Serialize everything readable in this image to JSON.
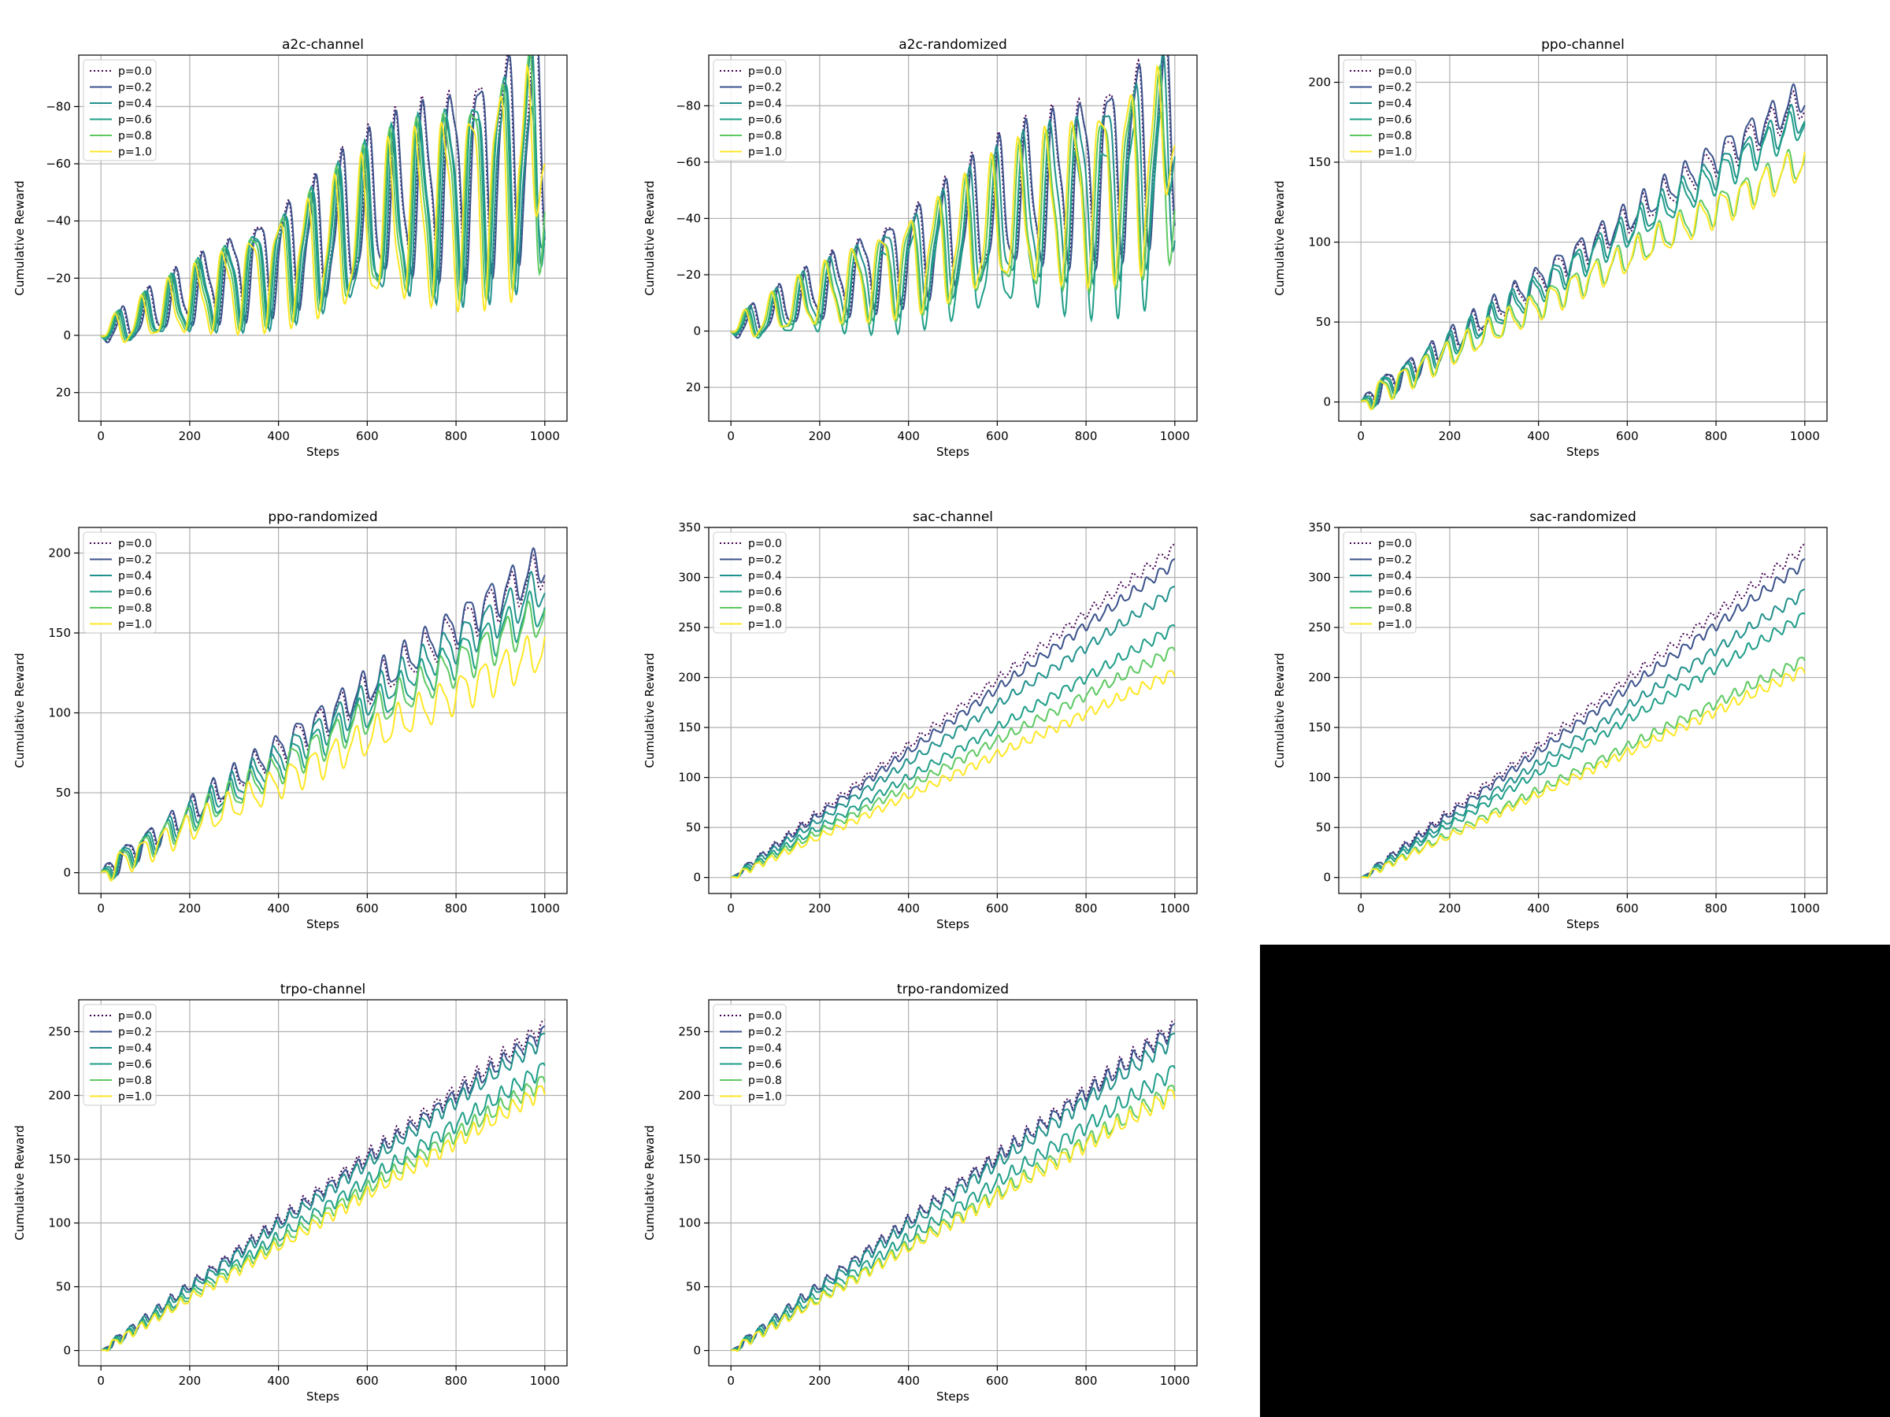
{
  "figure": {
    "xlabel": "Steps",
    "ylabel": "Cumulative Reward",
    "legend_placement": "upper-left",
    "grid": true,
    "series_colors": [
      "#440154",
      "#3b528b",
      "#21918c",
      "#1f9e89",
      "#5ec962",
      "#fde725"
    ],
    "series_dash": [
      "dotted",
      "solid",
      "solid",
      "solid",
      "solid",
      "solid"
    ]
  },
  "chart_data": [
    {
      "type": "line",
      "title": "a2c-channel",
      "xlabel": "Steps",
      "ylabel": "Cumulative Reward",
      "xlim": [
        -50,
        1050
      ],
      "ylim": [
        30,
        -98
      ],
      "y_inverted": true,
      "xticks": [
        0,
        200,
        400,
        600,
        800,
        1000
      ],
      "yticks": [
        20,
        0,
        -20,
        -40,
        -60,
        -80
      ],
      "ytick_labels": [
        "20",
        "0",
        "−20",
        "−40",
        "−60",
        "−80"
      ],
      "legend": "upper-left",
      "grid": true,
      "oscillation": {
        "period": 62,
        "amp_start": 4,
        "amp_end": 38
      },
      "series": [
        {
          "name": "p=0.0",
          "trend_end": -72,
          "phase": 0.2
        },
        {
          "name": "p=0.2",
          "trend_end": -70,
          "phase": 0.0
        },
        {
          "name": "p=0.4",
          "trend_end": -60,
          "phase": 0.7,
          "end": -32
        },
        {
          "name": "p=0.6",
          "trend_end": -64,
          "phase": 1.1
        },
        {
          "name": "p=0.8",
          "trend_end": -62,
          "phase": 1.5
        },
        {
          "name": "p=1.0",
          "trend_end": -58,
          "phase": 1.9,
          "end": -60
        }
      ]
    },
    {
      "type": "line",
      "title": "a2c-randomized",
      "xlabel": "Steps",
      "ylabel": "Cumulative Reward",
      "xlim": [
        -50,
        1050
      ],
      "ylim": [
        32,
        -98
      ],
      "y_inverted": true,
      "xticks": [
        0,
        200,
        400,
        600,
        800,
        1000
      ],
      "yticks": [
        20,
        0,
        -20,
        -40,
        -60,
        -80
      ],
      "ytick_labels": [
        "20",
        "0",
        "−20",
        "−40",
        "−60",
        "−80"
      ],
      "legend": "upper-left",
      "grid": true,
      "oscillation": {
        "period": 62,
        "amp_start": 4,
        "amp_end": 34
      },
      "series": [
        {
          "name": "p=0.0",
          "trend_end": -72,
          "phase": 0.2
        },
        {
          "name": "p=0.2",
          "trend_end": -70,
          "phase": 0.0
        },
        {
          "name": "p=0.4",
          "trend_end": -64,
          "phase": 0.7
        },
        {
          "name": "p=0.6",
          "trend_end": -48,
          "phase": 1.1,
          "end": -62
        },
        {
          "name": "p=0.8",
          "trend_end": -60,
          "phase": 1.5
        },
        {
          "name": "p=1.0",
          "trend_end": -62,
          "phase": 1.9,
          "end": -66
        }
      ]
    },
    {
      "type": "line",
      "title": "ppo-channel",
      "xlabel": "Steps",
      "ylabel": "Cumulative Reward",
      "xlim": [
        -50,
        1050
      ],
      "ylim": [
        -12,
        217
      ],
      "xticks": [
        0,
        200,
        400,
        600,
        800,
        1000
      ],
      "yticks": [
        0,
        50,
        100,
        150,
        200
      ],
      "ytick_labels": [
        "0",
        "50",
        "100",
        "150",
        "200"
      ],
      "legend": "upper-left",
      "grid": true,
      "oscillation": {
        "period": 48,
        "amp_start": 7,
        "amp_end": 10
      },
      "series": [
        {
          "name": "p=0.0",
          "trend_end": 188,
          "phase": 0.2
        },
        {
          "name": "p=0.2",
          "trend_end": 192,
          "phase": 0.0
        },
        {
          "name": "p=0.4",
          "trend_end": 180,
          "phase": 0.7
        },
        {
          "name": "p=0.6",
          "trend_end": 176,
          "phase": 1.1
        },
        {
          "name": "p=0.8",
          "trend_end": 152,
          "phase": 1.5
        },
        {
          "name": "p=1.0",
          "trend_end": 150,
          "phase": 1.9
        }
      ]
    },
    {
      "type": "line",
      "title": "ppo-randomized",
      "xlabel": "Steps",
      "ylabel": "Cumulative Reward",
      "xlim": [
        -50,
        1050
      ],
      "ylim": [
        -13,
        216
      ],
      "xticks": [
        0,
        200,
        400,
        600,
        800,
        1000
      ],
      "yticks": [
        0,
        50,
        100,
        150,
        200
      ],
      "ytick_labels": [
        "0",
        "50",
        "100",
        "150",
        "200"
      ],
      "legend": "upper-left",
      "grid": true,
      "oscillation": {
        "period": 48,
        "amp_start": 7,
        "amp_end": 12
      },
      "series": [
        {
          "name": "p=0.0",
          "trend_end": 190,
          "phase": 0.2
        },
        {
          "name": "p=0.2",
          "trend_end": 194,
          "phase": 0.0
        },
        {
          "name": "p=0.4",
          "trend_end": 180,
          "phase": 0.7
        },
        {
          "name": "p=0.6",
          "trend_end": 168,
          "phase": 1.1
        },
        {
          "name": "p=0.8",
          "trend_end": 162,
          "phase": 1.5
        },
        {
          "name": "p=1.0",
          "trend_end": 140,
          "phase": 1.9
        }
      ]
    },
    {
      "type": "line",
      "title": "sac-channel",
      "xlabel": "Steps",
      "ylabel": "Cumulative Reward",
      "xlim": [
        -50,
        1050
      ],
      "ylim": [
        -16,
        350
      ],
      "xticks": [
        0,
        200,
        400,
        600,
        800,
        1000
      ],
      "yticks": [
        0,
        50,
        100,
        150,
        200,
        250,
        300,
        350
      ],
      "ytick_labels": [
        "0",
        "50",
        "100",
        "150",
        "200",
        "250",
        "300",
        "350"
      ],
      "legend": "upper-left",
      "grid": true,
      "oscillation": {
        "period": 30,
        "amp_start": 3,
        "amp_end": 5
      },
      "series": [
        {
          "name": "p=0.0",
          "trend_end": 330,
          "phase": 0.2
        },
        {
          "name": "p=0.2",
          "trend_end": 315,
          "phase": 0.0
        },
        {
          "name": "p=0.4",
          "trend_end": 288,
          "phase": 0.7
        },
        {
          "name": "p=0.6",
          "trend_end": 250,
          "phase": 1.1
        },
        {
          "name": "p=0.8",
          "trend_end": 228,
          "phase": 1.5
        },
        {
          "name": "p=1.0",
          "trend_end": 205,
          "phase": 1.9
        }
      ]
    },
    {
      "type": "line",
      "title": "sac-randomized",
      "xlabel": "Steps",
      "ylabel": "Cumulative Reward",
      "xlim": [
        -50,
        1050
      ],
      "ylim": [
        -16,
        350
      ],
      "xticks": [
        0,
        200,
        400,
        600,
        800,
        1000
      ],
      "yticks": [
        0,
        50,
        100,
        150,
        200,
        250,
        300,
        350
      ],
      "ytick_labels": [
        "0",
        "50",
        "100",
        "150",
        "200",
        "250",
        "300",
        "350"
      ],
      "legend": "upper-left",
      "grid": true,
      "oscillation": {
        "period": 30,
        "amp_start": 3,
        "amp_end": 5
      },
      "series": [
        {
          "name": "p=0.0",
          "trend_end": 330,
          "phase": 0.2
        },
        {
          "name": "p=0.2",
          "trend_end": 315,
          "phase": 0.0
        },
        {
          "name": "p=0.4",
          "trend_end": 285,
          "phase": 0.7
        },
        {
          "name": "p=0.6",
          "trend_end": 262,
          "phase": 1.1
        },
        {
          "name": "p=0.8",
          "trend_end": 218,
          "phase": 1.5
        },
        {
          "name": "p=1.0",
          "trend_end": 208,
          "phase": 1.9
        }
      ]
    },
    {
      "type": "line",
      "title": "trpo-channel",
      "xlabel": "Steps",
      "ylabel": "Cumulative Reward",
      "xlim": [
        -50,
        1050
      ],
      "ylim": [
        -12,
        275
      ],
      "xticks": [
        0,
        200,
        400,
        600,
        800,
        1000
      ],
      "yticks": [
        0,
        50,
        100,
        150,
        200,
        250
      ],
      "ytick_labels": [
        "0",
        "50",
        "100",
        "150",
        "200",
        "250"
      ],
      "legend": "upper-left",
      "grid": true,
      "oscillation": {
        "period": 30,
        "amp_start": 3,
        "amp_end": 6
      },
      "series": [
        {
          "name": "p=0.0",
          "trend_end": 255,
          "phase": 0.2
        },
        {
          "name": "p=0.2",
          "trend_end": 250,
          "phase": 0.0
        },
        {
          "name": "p=0.4",
          "trend_end": 245,
          "phase": 0.7
        },
        {
          "name": "p=0.6",
          "trend_end": 222,
          "phase": 1.1
        },
        {
          "name": "p=0.8",
          "trend_end": 212,
          "phase": 1.5
        },
        {
          "name": "p=1.0",
          "trend_end": 205,
          "phase": 1.9
        }
      ]
    },
    {
      "type": "line",
      "title": "trpo-randomized",
      "xlabel": "Steps",
      "ylabel": "Cumulative Reward",
      "xlim": [
        -50,
        1050
      ],
      "ylim": [
        -12,
        275
      ],
      "xticks": [
        0,
        200,
        400,
        600,
        800,
        1000
      ],
      "yticks": [
        0,
        50,
        100,
        150,
        200,
        250
      ],
      "ytick_labels": [
        "0",
        "50",
        "100",
        "150",
        "200",
        "250"
      ],
      "legend": "upper-left",
      "grid": true,
      "oscillation": {
        "period": 30,
        "amp_start": 3,
        "amp_end": 6
      },
      "series": [
        {
          "name": "p=0.0",
          "trend_end": 255,
          "phase": 0.2
        },
        {
          "name": "p=0.2",
          "trend_end": 252,
          "phase": 0.0
        },
        {
          "name": "p=0.4",
          "trend_end": 245,
          "phase": 0.7
        },
        {
          "name": "p=0.6",
          "trend_end": 220,
          "phase": 1.1
        },
        {
          "name": "p=0.8",
          "trend_end": 205,
          "phase": 1.5
        },
        {
          "name": "p=1.0",
          "trend_end": 202,
          "phase": 1.9
        }
      ]
    }
  ]
}
